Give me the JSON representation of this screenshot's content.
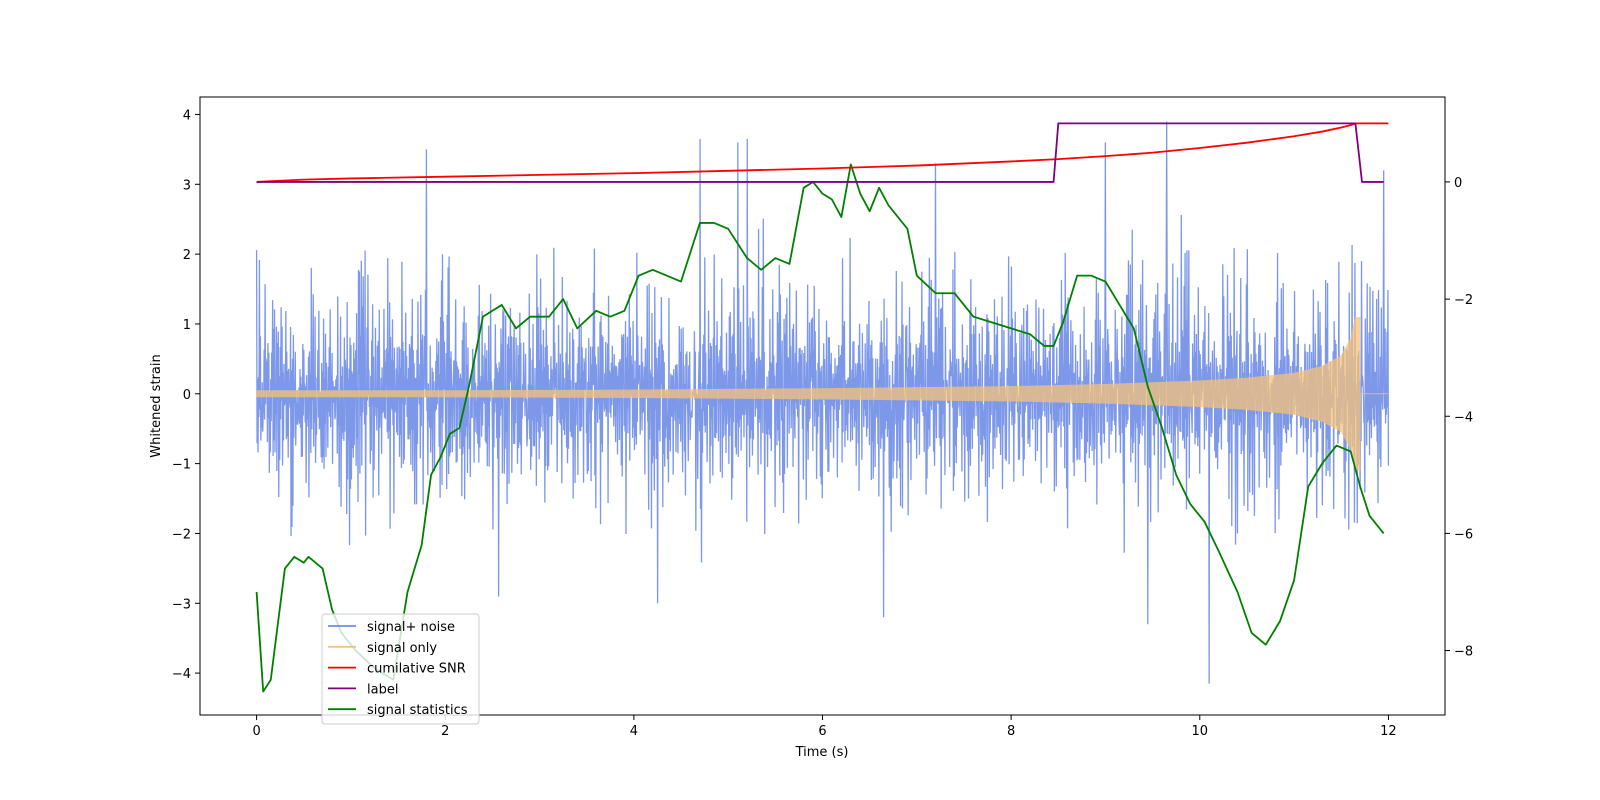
{
  "chart_data": {
    "type": "line",
    "title": "",
    "xlabel": "Time (s)",
    "ylabel": "Whitened strain",
    "xlim": [
      -0.6,
      12.6
    ],
    "ylim": [
      -4.6,
      4.25
    ],
    "y2lim": [
      -9.1,
      1.45
    ],
    "xticks": [
      0,
      2,
      4,
      6,
      8,
      10,
      12
    ],
    "xtick_labels": [
      "0",
      "2",
      "4",
      "6",
      "8",
      "10",
      "12"
    ],
    "yticks": [
      -4,
      -3,
      -2,
      -1,
      0,
      1,
      2,
      3,
      4
    ],
    "ytick_labels": [
      "−4",
      "−3",
      "−2",
      "−1",
      "0",
      "1",
      "2",
      "3",
      "4"
    ],
    "y2ticks": [
      -8,
      -6,
      -4,
      -2,
      0
    ],
    "y2tick_labels": [
      "−8",
      "−6",
      "−4",
      "−2",
      "0"
    ],
    "legend_position": "lower-left",
    "series": [
      {
        "name": "signal+ noise",
        "axis": "left",
        "color": "#6f8de6",
        "description": "whitened noise plus injected chirp, approx. uniform spread -2.5..2.5 with spikes to +3.9 / -4.15, t = 0..12 s",
        "sample_count": 2400,
        "spread": 2.2,
        "spikes": [
          [
            1.8,
            3.5
          ],
          [
            4.7,
            3.65
          ],
          [
            5.1,
            3.6
          ],
          [
            5.2,
            3.65
          ],
          [
            7.2,
            3.3
          ],
          [
            9.0,
            3.6
          ],
          [
            9.65,
            3.9
          ],
          [
            11.95,
            3.2
          ],
          [
            10.1,
            -4.15
          ],
          [
            6.65,
            -3.2
          ],
          [
            9.45,
            -3.3
          ],
          [
            4.25,
            -3.0
          ]
        ]
      },
      {
        "name": "signal only",
        "axis": "left",
        "color": "#f5c27a",
        "description": "chirp signal, amplitude growing to ~1.1 at merger (t = 11.65 s), zero after 11.7 s",
        "envelope_t": [
          0,
          2,
          4,
          6,
          8,
          9,
          10,
          10.5,
          11,
          11.3,
          11.5,
          11.6,
          11.65
        ],
        "envelope_a": [
          0.05,
          0.05,
          0.06,
          0.08,
          0.11,
          0.14,
          0.19,
          0.23,
          0.3,
          0.4,
          0.55,
          0.8,
          1.1
        ],
        "merger_time": 11.7
      },
      {
        "name": "cumilative SNR",
        "axis": "right",
        "color": "#ff0000",
        "t": [
          0,
          0.5,
          1,
          2,
          3,
          4,
          5,
          6,
          7,
          8,
          8.5,
          9,
          9.5,
          10,
          10.5,
          11,
          11.3,
          11.5,
          11.6,
          11.65,
          11.7,
          12
        ],
        "values": [
          0.0,
          0.04,
          0.06,
          0.09,
          0.12,
          0.15,
          0.19,
          0.23,
          0.28,
          0.35,
          0.39,
          0.44,
          0.5,
          0.58,
          0.67,
          0.78,
          0.86,
          0.93,
          0.97,
          1.0,
          1.0,
          1.0
        ]
      },
      {
        "name": "label",
        "axis": "right",
        "color": "#800080",
        "t": [
          0,
          8.45,
          8.5,
          11.65,
          11.72,
          11.95
        ],
        "values": [
          0,
          0,
          1,
          1,
          0,
          0
        ]
      },
      {
        "name": "signal statistics",
        "axis": "right",
        "color": "#008000",
        "t": [
          0,
          0.07,
          0.15,
          0.3,
          0.4,
          0.5,
          0.55,
          0.7,
          0.8,
          0.9,
          1.05,
          1.25,
          1.45,
          1.6,
          1.75,
          1.85,
          1.95,
          2.05,
          2.15,
          2.25,
          2.4,
          2.6,
          2.75,
          2.9,
          3.1,
          3.25,
          3.4,
          3.6,
          3.75,
          3.9,
          4.05,
          4.2,
          4.35,
          4.5,
          4.7,
          4.85,
          5.0,
          5.2,
          5.35,
          5.5,
          5.65,
          5.8,
          5.9,
          6.0,
          6.1,
          6.2,
          6.3,
          6.4,
          6.5,
          6.6,
          6.7,
          6.8,
          6.9,
          7.0,
          7.2,
          7.4,
          7.6,
          7.8,
          8.0,
          8.2,
          8.35,
          8.45,
          8.55,
          8.7,
          8.85,
          9.0,
          9.15,
          9.3,
          9.45,
          9.6,
          9.75,
          9.9,
          10.05,
          10.2,
          10.4,
          10.55,
          10.7,
          10.85,
          11.0,
          11.15,
          11.3,
          11.45,
          11.6,
          11.7,
          11.8,
          11.95
        ],
        "values": [
          -7.0,
          -8.7,
          -8.5,
          -6.6,
          -6.4,
          -6.5,
          -6.4,
          -6.6,
          -7.3,
          -7.7,
          -8.0,
          -8.3,
          -8.5,
          -7.0,
          -6.2,
          -5.0,
          -4.7,
          -4.3,
          -4.2,
          -3.5,
          -2.3,
          -2.1,
          -2.5,
          -2.3,
          -2.3,
          -2.0,
          -2.5,
          -2.2,
          -2.3,
          -2.2,
          -1.6,
          -1.5,
          -1.6,
          -1.7,
          -0.7,
          -0.7,
          -0.8,
          -1.3,
          -1.5,
          -1.3,
          -1.4,
          -0.1,
          0.0,
          -0.2,
          -0.3,
          -0.6,
          0.3,
          -0.2,
          -0.5,
          -0.1,
          -0.4,
          -0.6,
          -0.8,
          -1.6,
          -1.9,
          -1.9,
          -2.3,
          -2.4,
          -2.5,
          -2.6,
          -2.8,
          -2.8,
          -2.4,
          -1.6,
          -1.6,
          -1.7,
          -2.1,
          -2.5,
          -3.5,
          -4.2,
          -5.0,
          -5.5,
          -5.8,
          -6.3,
          -7.0,
          -7.7,
          -7.9,
          -7.5,
          -6.8,
          -5.2,
          -4.8,
          -4.5,
          -4.6,
          -5.2,
          -5.7,
          -6.0
        ]
      }
    ]
  }
}
